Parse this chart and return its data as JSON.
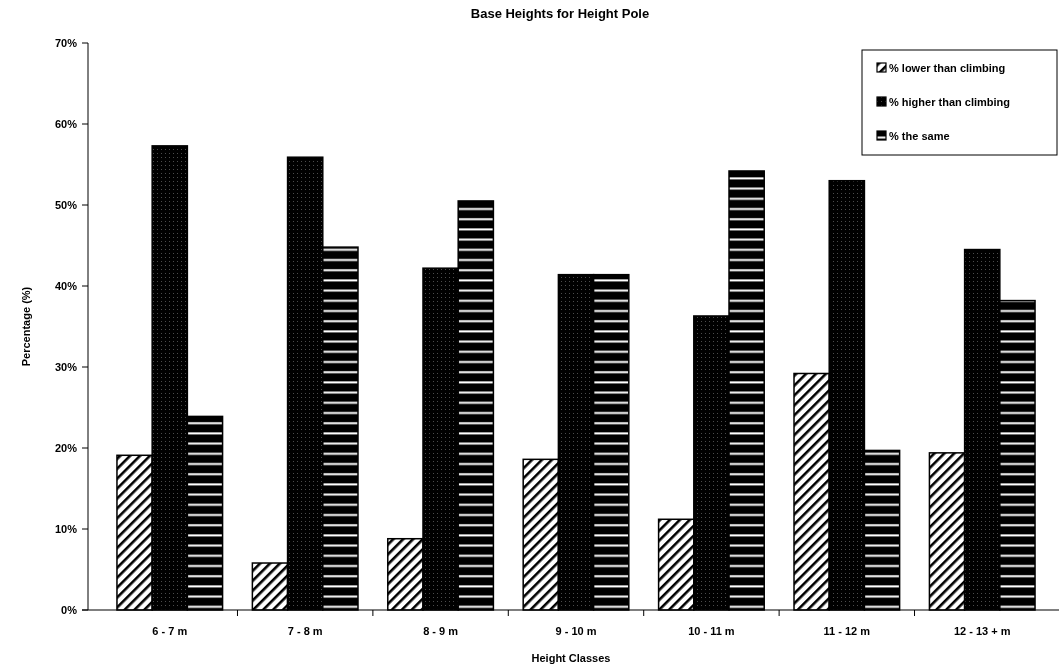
{
  "chart_data": {
    "type": "bar",
    "title": "Base Heights for Height Pole",
    "xlabel": "Height Classes",
    "ylabel": "Percentage (%)",
    "categories": [
      "6 - 7 m",
      "7 - 8 m",
      "8 - 9 m",
      "9 - 10 m",
      "10 - 11 m",
      "11 - 12 m",
      "12 - 13 + m"
    ],
    "series": [
      {
        "name": "% lower than climbing",
        "color": "#000000",
        "values": [
          19.1,
          5.8,
          8.8,
          18.6,
          11.2,
          29.2,
          19.4
        ]
      },
      {
        "name": "% higher than climbing",
        "color": "#000000",
        "values": [
          57.3,
          55.9,
          42.2,
          41.4,
          36.3,
          53,
          44.5
        ]
      },
      {
        "name": "% the same",
        "color": "#000000",
        "values": [
          23.9,
          44.8,
          50.5,
          41.4,
          54.2,
          19.7,
          38.2
        ]
      }
    ],
    "ylim": [
      0,
      70
    ],
    "yticks": [
      {
        "value": 0,
        "label": "0%"
      },
      {
        "value": 10,
        "label": "10%"
      },
      {
        "value": 20,
        "label": "20%"
      },
      {
        "value": 30,
        "label": "30%"
      },
      {
        "value": 40,
        "label": "40%"
      },
      {
        "value": 50,
        "label": "50%"
      },
      {
        "value": 60,
        "label": "60%"
      },
      {
        "value": 70,
        "label": "70%"
      }
    ],
    "legend": "top right"
  }
}
